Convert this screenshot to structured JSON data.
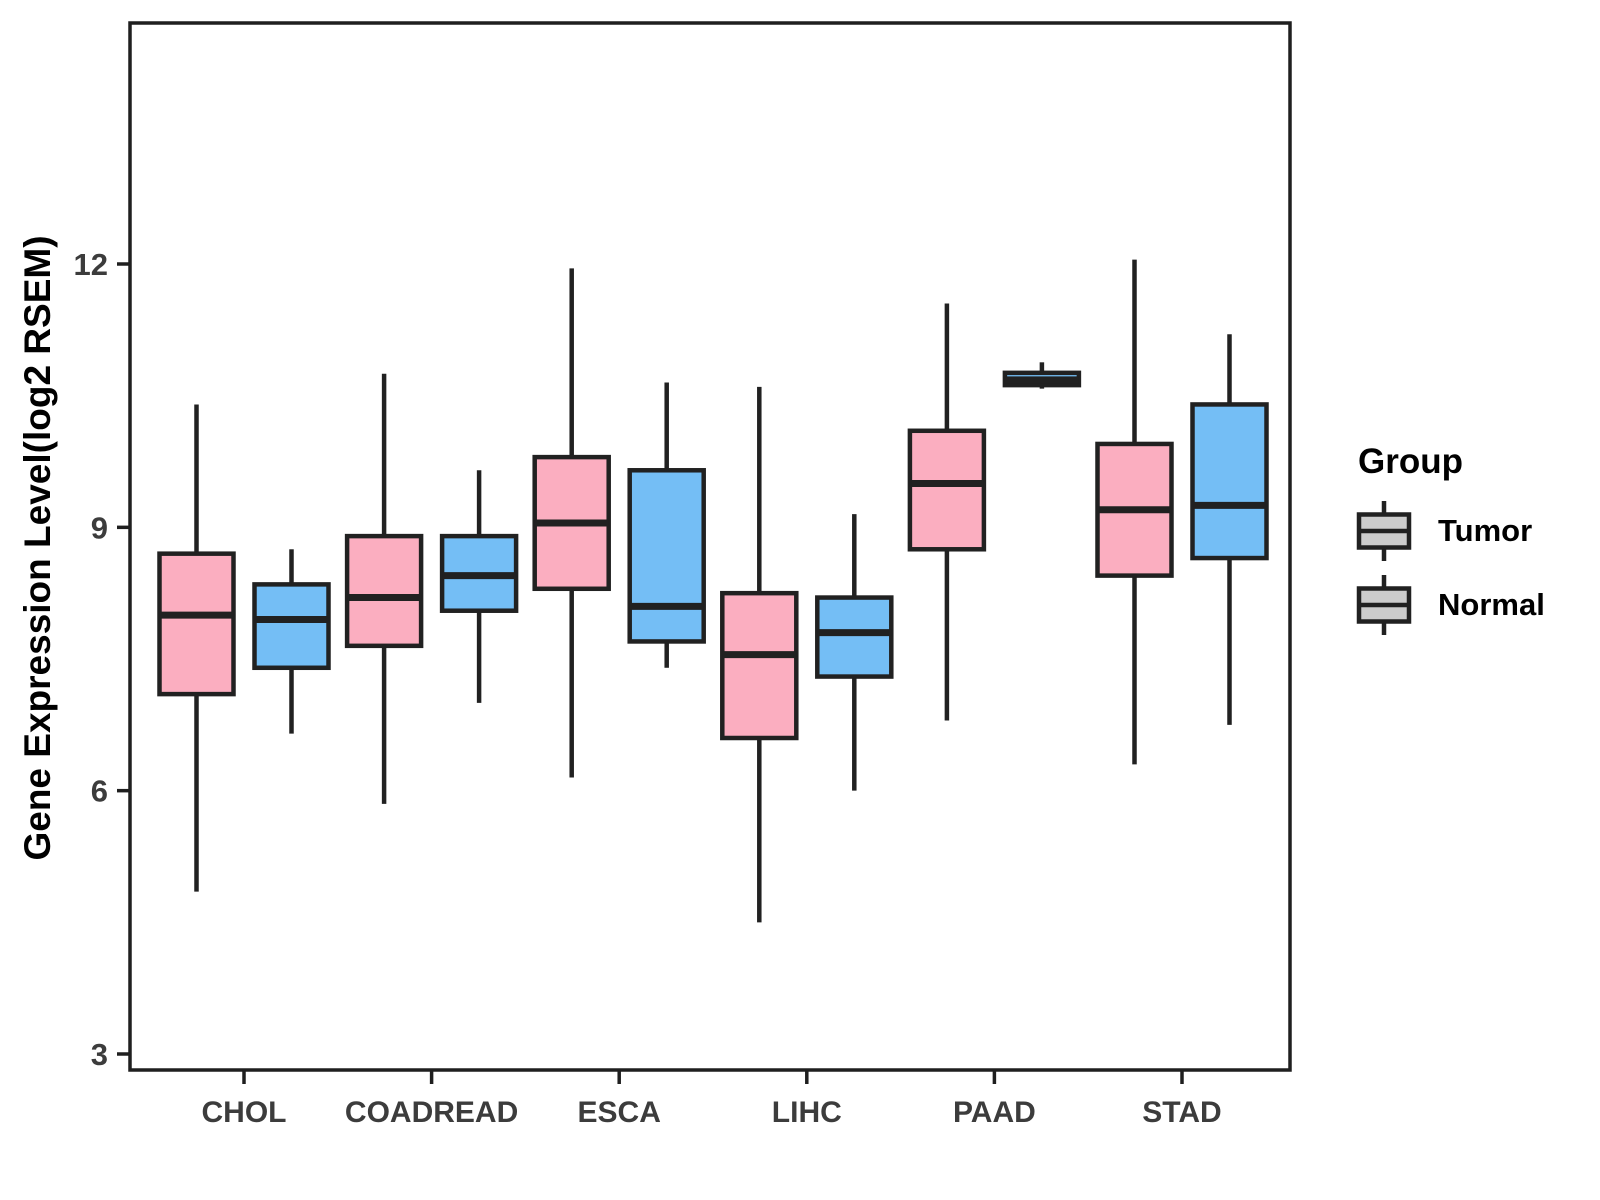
{
  "figure": {
    "background": "#ffffff"
  },
  "chart_data": {
    "type": "grouped_boxplot",
    "title": "",
    "xlabel": "",
    "ylabel": "Gene Expression Level(log2 RSEM)",
    "categories": [
      "CHOL",
      "COADREAD",
      "ESCA",
      "LIHC",
      "PAAD",
      "STAD"
    ],
    "yticks": [
      3,
      6,
      9,
      12
    ],
    "ylim": [
      2.8,
      14.7
    ],
    "grid": false,
    "legend_position": "right",
    "legend_title": "Group",
    "groups": [
      {
        "name": "Tumor",
        "fill": "#FBAEC0"
      },
      {
        "name": "Normal",
        "fill": "#74BEF5"
      }
    ],
    "series": [
      {
        "name": "Tumor",
        "boxes": [
          {
            "category": "CHOL",
            "min": 4.85,
            "q1": 7.1,
            "median": 8.0,
            "q3": 8.7,
            "max": 10.4
          },
          {
            "category": "COADREAD",
            "min": 5.85,
            "q1": 7.65,
            "median": 8.2,
            "q3": 8.9,
            "max": 10.75
          },
          {
            "category": "ESCA",
            "min": 6.15,
            "q1": 8.3,
            "median": 9.05,
            "q3": 9.8,
            "max": 11.95
          },
          {
            "category": "LIHC",
            "min": 4.5,
            "q1": 6.6,
            "median": 7.55,
            "q3": 8.25,
            "max": 10.6
          },
          {
            "category": "PAAD",
            "min": 6.8,
            "q1": 8.75,
            "median": 9.5,
            "q3": 10.1,
            "max": 11.55
          },
          {
            "category": "STAD",
            "min": 6.3,
            "q1": 8.45,
            "median": 9.2,
            "q3": 9.95,
            "max": 12.05
          }
        ]
      },
      {
        "name": "Normal",
        "boxes": [
          {
            "category": "CHOL",
            "min": 6.65,
            "q1": 7.4,
            "median": 7.95,
            "q3": 8.35,
            "max": 8.75
          },
          {
            "category": "COADREAD",
            "min": 7.0,
            "q1": 8.05,
            "median": 8.45,
            "q3": 8.9,
            "max": 9.65
          },
          {
            "category": "ESCA",
            "min": 7.4,
            "q1": 7.7,
            "median": 8.1,
            "q3": 9.65,
            "max": 10.65
          },
          {
            "category": "LIHC",
            "min": 6.0,
            "q1": 7.3,
            "median": 7.8,
            "q3": 8.2,
            "max": 9.15
          },
          {
            "category": "PAAD",
            "min": 10.58,
            "q1": 10.62,
            "median": 10.68,
            "q3": 10.76,
            "max": 10.88
          },
          {
            "category": "STAD",
            "min": 6.75,
            "q1": 8.65,
            "median": 9.25,
            "q3": 10.4,
            "max": 11.2
          }
        ]
      }
    ],
    "style": {
      "box_stroke": "#212121",
      "panel_border_color": "#1f1f1f",
      "tick_text_color": "#3c3c3c",
      "axis_title_color": "#000000"
    }
  }
}
